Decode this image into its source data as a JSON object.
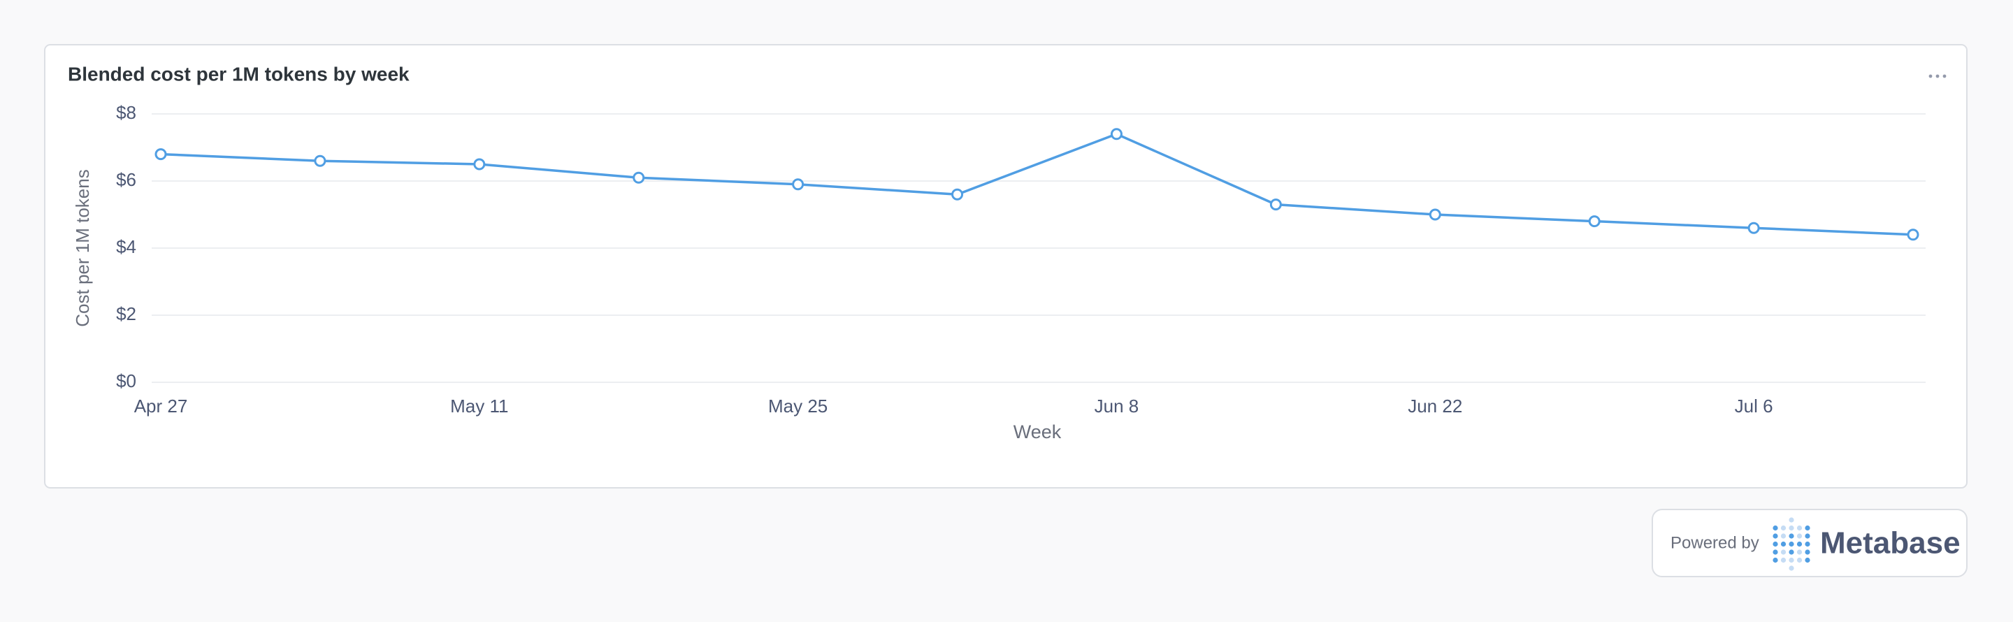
{
  "chart_data": {
    "type": "line",
    "title": "Blended cost per 1M tokens by week",
    "x_label": "Week",
    "y_label": "Cost per 1M tokens",
    "categories": [
      "Apr 27",
      null,
      "May 11",
      null,
      "May 25",
      null,
      "Jun 8",
      null,
      "Jun 22",
      null,
      "Jul 6",
      null
    ],
    "values": [
      6.8,
      6.6,
      6.5,
      6.1,
      5.9,
      5.6,
      7.4,
      5.3,
      5.0,
      4.8,
      4.6,
      4.4
    ],
    "color": "#509ee3",
    "ylim": [
      0,
      8
    ],
    "yticks": [
      {
        "value": 0,
        "label": "$0"
      },
      {
        "value": 2,
        "label": "$2"
      },
      {
        "value": 4,
        "label": "$4"
      },
      {
        "value": 6,
        "label": "$6"
      },
      {
        "value": 8,
        "label": "$8"
      }
    ],
    "grid": true
  },
  "footer": {
    "powered_by": "Powered by",
    "brand": "Metabase"
  }
}
